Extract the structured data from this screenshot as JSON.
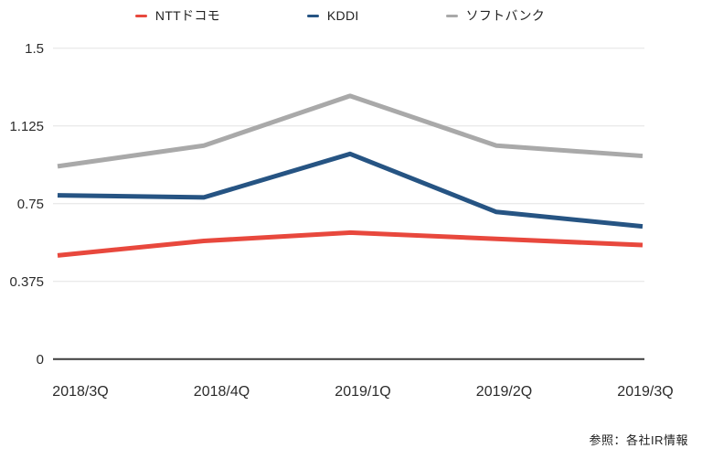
{
  "chart_data": {
    "type": "line",
    "categories": [
      "2018/3Q",
      "2018/4Q",
      "2019/1Q",
      "2019/2Q",
      "2019/3Q"
    ],
    "series": [
      {
        "name": "NTTドコモ",
        "color": "#e8483d",
        "values": [
          0.5,
          0.57,
          0.61,
          0.58,
          0.55
        ]
      },
      {
        "name": "KDDI",
        "color": "#265483",
        "values": [
          0.79,
          0.78,
          0.99,
          0.71,
          0.64
        ]
      },
      {
        "name": "ソフトバンク",
        "color": "#a9a9a9",
        "values": [
          0.93,
          1.03,
          1.27,
          1.03,
          0.98
        ]
      }
    ],
    "title": "",
    "xlabel": "",
    "ylabel": "",
    "ylim": [
      0,
      1.5
    ],
    "yticks": [
      0,
      0.375,
      0.75,
      1.125,
      1.5
    ],
    "grid": true,
    "legend_position": "top"
  },
  "footer": {
    "source_note": "参照：各社IR情報"
  },
  "colors": {
    "gridline": "#e3e3e3",
    "axis_line": "#3c3c3c",
    "tick_text": "#2b2b2b"
  }
}
